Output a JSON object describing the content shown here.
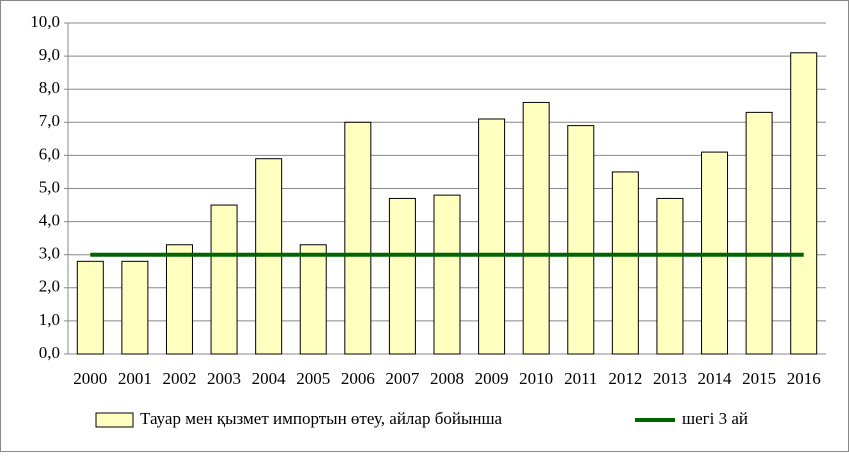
{
  "chart_data": {
    "type": "bar",
    "categories": [
      "2000",
      "2001",
      "2002",
      "2003",
      "2004",
      "2005",
      "2006",
      "2007",
      "2008",
      "2009",
      "2010",
      "2011",
      "2012",
      "2013",
      "2014",
      "2015",
      "2016"
    ],
    "series": [
      {
        "name": "Тауар мен қызмет импортын өтеу, айлар бойынша",
        "type": "bar",
        "color": "#ffffc0",
        "values": [
          2.8,
          2.8,
          3.3,
          4.5,
          5.9,
          3.3,
          7.0,
          4.7,
          4.8,
          7.1,
          7.6,
          6.9,
          5.5,
          4.7,
          6.1,
          7.3,
          9.1
        ]
      },
      {
        "name": "шегі 3 ай",
        "type": "line",
        "color": "#006400",
        "values": [
          3,
          3,
          3,
          3,
          3,
          3,
          3,
          3,
          3,
          3,
          3,
          3,
          3,
          3,
          3,
          3,
          3
        ]
      }
    ],
    "ylim": [
      0,
      10
    ],
    "yticks": [
      {
        "value": 0,
        "label": "0,0"
      },
      {
        "value": 1,
        "label": "1,0"
      },
      {
        "value": 2,
        "label": "2,0"
      },
      {
        "value": 3,
        "label": "3,0"
      },
      {
        "value": 4,
        "label": "4,0"
      },
      {
        "value": 5,
        "label": "5,0"
      },
      {
        "value": 6,
        "label": "6,0"
      },
      {
        "value": 7,
        "label": "7,0"
      },
      {
        "value": 8,
        "label": "8,0"
      },
      {
        "value": 9,
        "label": "9,0"
      },
      {
        "value": 10,
        "label": "10,0"
      }
    ],
    "grid": true,
    "legend": "bottom"
  }
}
